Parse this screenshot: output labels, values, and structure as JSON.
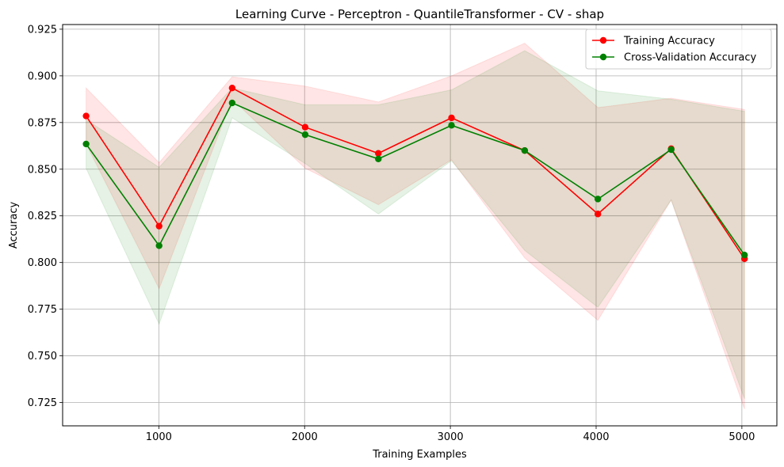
{
  "chart_data": {
    "type": "line",
    "title": "Learning Curve - Perceptron - QuantileTransformer - CV - shap",
    "xlabel": "Training Examples",
    "ylabel": "Accuracy",
    "xlim": [
      340,
      5240
    ],
    "ylim": [
      0.7125,
      0.9275
    ],
    "xticks": [
      1000,
      2000,
      3000,
      4000,
      5000
    ],
    "yticks": [
      0.725,
      0.75,
      0.775,
      0.8,
      0.825,
      0.85,
      0.875,
      0.9,
      0.925
    ],
    "x": [
      501,
      1002,
      1503,
      2004,
      2506,
      3008,
      3510,
      4012,
      4515,
      5018
    ],
    "grid": true,
    "legend_position": "top-right",
    "series": [
      {
        "name": "Training Accuracy",
        "color": "#ff0000",
        "values": [
          0.8785,
          0.8195,
          0.8935,
          0.8725,
          0.8585,
          0.8775,
          0.86,
          0.826,
          0.861,
          0.802
        ],
        "band_upper": [
          0.8935,
          0.8535,
          0.8995,
          0.8945,
          0.886,
          0.9,
          0.9175,
          0.883,
          0.888,
          0.882
        ],
        "band_lower": [
          0.8635,
          0.786,
          0.8875,
          0.8505,
          0.831,
          0.855,
          0.8025,
          0.769,
          0.8335,
          0.7215
        ],
        "band_color": "#ff0000"
      },
      {
        "name": "Cross-Validation Accuracy",
        "color": "#008000",
        "values": [
          0.8635,
          0.809,
          0.8855,
          0.8685,
          0.8555,
          0.8735,
          0.86,
          0.834,
          0.8605,
          0.804
        ],
        "band_upper": [
          0.8765,
          0.851,
          0.8935,
          0.8845,
          0.8845,
          0.8925,
          0.9135,
          0.892,
          0.8875,
          0.881
        ],
        "band_lower": [
          0.8505,
          0.767,
          0.8775,
          0.853,
          0.826,
          0.8545,
          0.8065,
          0.776,
          0.8335,
          0.727
        ],
        "band_color": "#008000"
      }
    ]
  }
}
